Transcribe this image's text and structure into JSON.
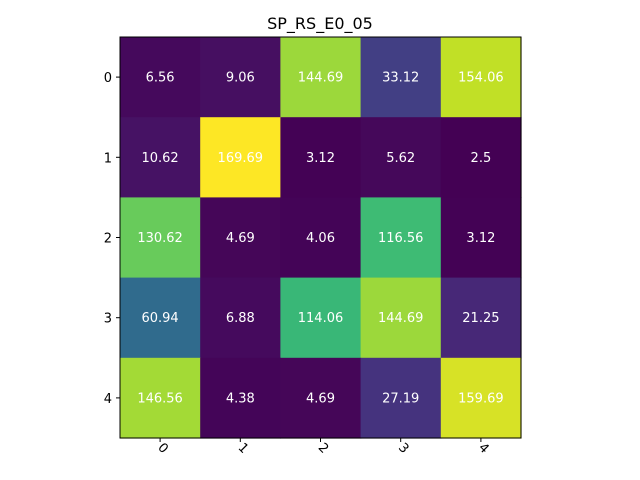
{
  "chart_data": {
    "type": "heatmap",
    "title": "SP_RS_E0_05",
    "x_ticks": [
      "0",
      "1",
      "2",
      "3",
      "4"
    ],
    "y_ticks": [
      "0",
      "1",
      "2",
      "3",
      "4"
    ],
    "values": [
      [
        6.56,
        9.06,
        144.69,
        33.12,
        154.06
      ],
      [
        10.62,
        169.69,
        3.12,
        5.62,
        2.5
      ],
      [
        130.62,
        4.69,
        4.06,
        116.56,
        3.12
      ],
      [
        60.94,
        6.88,
        114.06,
        144.69,
        21.25
      ],
      [
        146.56,
        4.38,
        4.69,
        27.19,
        159.69
      ]
    ],
    "cell_labels": [
      [
        "6.56",
        "9.06",
        "144.69",
        "33.12",
        "154.06"
      ],
      [
        "10.62",
        "169.69",
        "3.12",
        "5.62",
        "2.5"
      ],
      [
        "130.62",
        "4.69",
        "4.06",
        "116.56",
        "3.12"
      ],
      [
        "60.94",
        "6.88",
        "114.06",
        "144.69",
        "21.25"
      ],
      [
        "146.56",
        "4.38",
        "4.69",
        "27.19",
        "159.69"
      ]
    ],
    "colormap": "viridis",
    "vmin": 2.5,
    "vmax": 169.69,
    "grid": false,
    "colorbar": false,
    "text_color": "#ffffff",
    "x_tick_rotation_deg": 45
  }
}
